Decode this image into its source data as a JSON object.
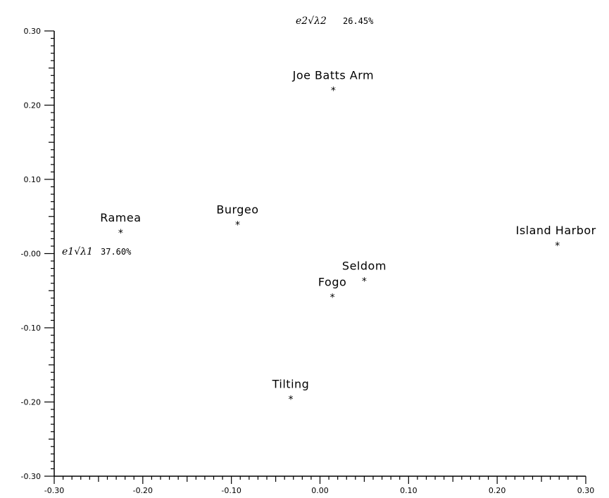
{
  "chart_data": {
    "type": "scatter",
    "title": "",
    "xlabel": "e1√λ1",
    "xlabel_pct": "37.60%",
    "ylabel": "e2√λ2",
    "ylabel_pct": "26.45%",
    "xlim": [
      -0.3,
      0.3
    ],
    "ylim": [
      -0.3,
      0.3
    ],
    "x_ticks": [
      "-0.30",
      "-0.20",
      "-0.10",
      "0.00",
      "0.10",
      "0.20",
      "0.30"
    ],
    "y_ticks": [
      "0.30",
      "0.20",
      "0.10",
      "-0.00",
      "-0.10",
      "-0.20",
      "-0.30"
    ],
    "grid": false,
    "points": [
      {
        "label": "Joe Batts Arm",
        "x": 0.015,
        "y": 0.22
      },
      {
        "label": "Ramea",
        "x": -0.225,
        "y": 0.028
      },
      {
        "label": "Burgeo",
        "x": -0.093,
        "y": 0.039
      },
      {
        "label": "Island Harbor",
        "x": 0.268,
        "y": 0.011
      },
      {
        "label": "Seldom",
        "x": 0.05,
        "y": -0.037
      },
      {
        "label": "Fogo",
        "x": 0.014,
        "y": -0.059
      },
      {
        "label": "Tilting",
        "x": -0.033,
        "y": -0.196
      }
    ]
  }
}
